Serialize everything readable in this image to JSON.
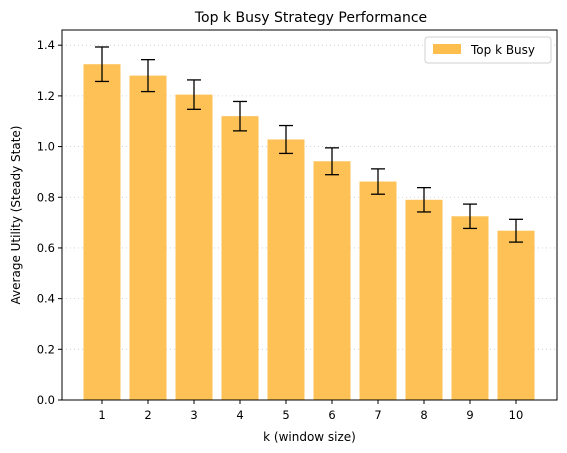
{
  "chart_data": {
    "type": "bar",
    "title": "Top k Busy Strategy Performance",
    "xlabel": "k (window size)",
    "ylabel": "Average Utility (Steady State)",
    "categories": [
      "1",
      "2",
      "3",
      "4",
      "5",
      "6",
      "7",
      "8",
      "9",
      "10"
    ],
    "series": [
      {
        "name": "Top k Busy",
        "values": [
          1.325,
          1.28,
          1.205,
          1.12,
          1.028,
          0.942,
          0.862,
          0.79,
          0.725,
          0.668
        ],
        "errors": [
          0.068,
          0.063,
          0.058,
          0.058,
          0.055,
          0.053,
          0.05,
          0.048,
          0.048,
          0.045
        ],
        "color": "#fdbe4d"
      }
    ],
    "ylim": [
      0,
      1.46
    ],
    "yticks": [
      0.0,
      0.2,
      0.4,
      0.6,
      0.8,
      1.0,
      1.2,
      1.4
    ],
    "ytick_labels": [
      "0.0",
      "0.2",
      "0.4",
      "0.6",
      "0.8",
      "1.0",
      "1.2",
      "1.4"
    ],
    "grid": "y-dotted",
    "legend_position": "top-right"
  }
}
